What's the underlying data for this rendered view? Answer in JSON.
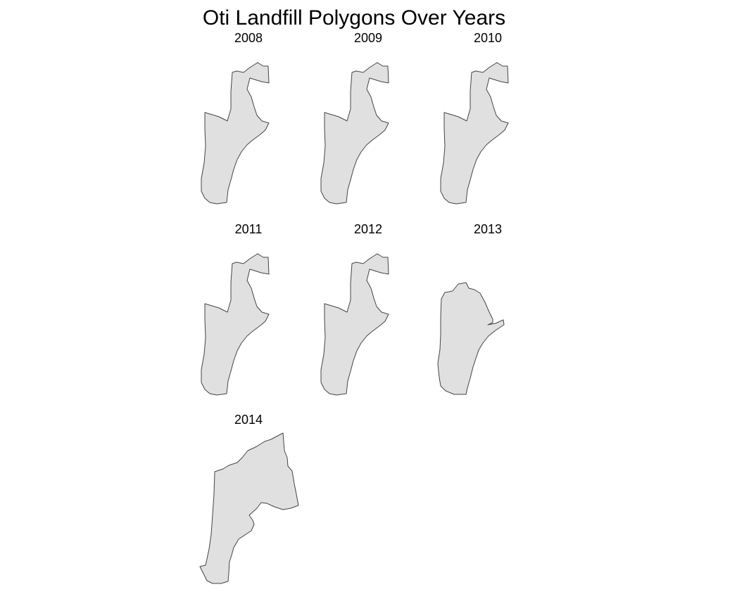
{
  "figure": {
    "title": "Oti Landfill Polygons Over Years"
  },
  "colors": {
    "polygon_fill": "#e0e0e0",
    "polygon_stroke": "#444444",
    "background": "#ffffff"
  },
  "panels": [
    {
      "year": "2008",
      "shape": "A"
    },
    {
      "year": "2009",
      "shape": "A"
    },
    {
      "year": "2010",
      "shape": "A"
    },
    {
      "year": "2011",
      "shape": "A"
    },
    {
      "year": "2012",
      "shape": "A"
    },
    {
      "year": "2013",
      "shape": "B"
    },
    {
      "year": "2014",
      "shape": "C"
    }
  ]
}
